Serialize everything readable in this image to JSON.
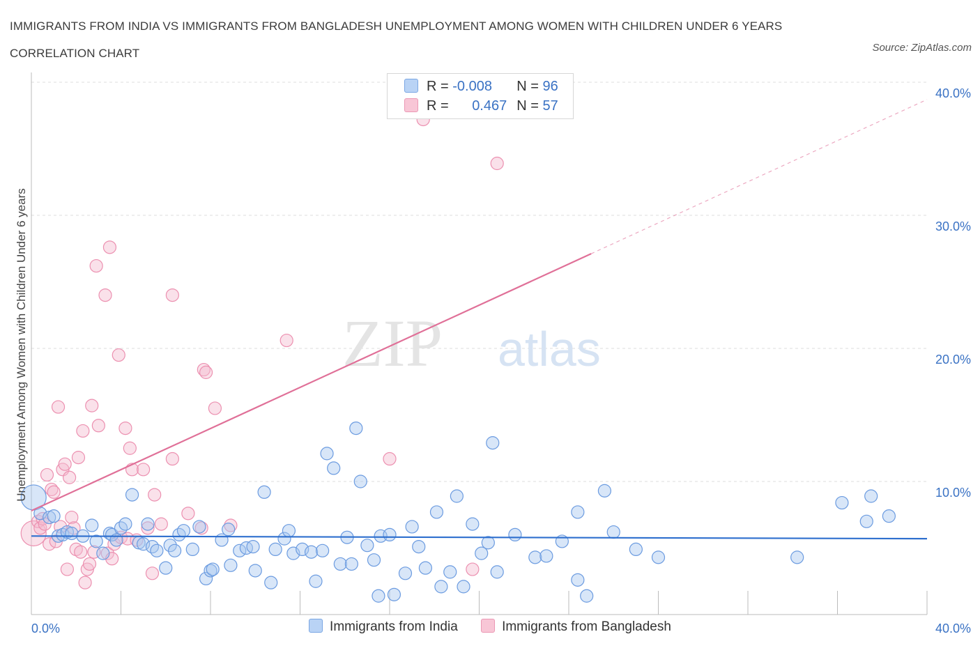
{
  "title": "IMMIGRANTS FROM INDIA VS IMMIGRANTS FROM BANGLADESH UNEMPLOYMENT AMONG WOMEN WITH CHILDREN UNDER 6 YEARS CORRELATION CHART",
  "source": "Source: ZipAtlas.com",
  "watermark": {
    "zip": "ZIP",
    "atlas": "atlas"
  },
  "legend": {
    "r_label": "R =",
    "n_label": "N =",
    "rows": [
      {
        "r": "-0.008",
        "n": "96"
      },
      {
        "r": "0.467",
        "n": "57"
      }
    ]
  },
  "chart_data": {
    "type": "scatter",
    "ylabel": "Unemployment Among Women with Children Under 6 years",
    "xlabel": "",
    "xlim": [
      0,
      40
    ],
    "ylim": [
      0,
      40
    ],
    "x_tick_labels": [
      "0.0%",
      "40.0%"
    ],
    "y_tick_labels": [
      "10.0%",
      "20.0%",
      "30.0%",
      "40.0%"
    ],
    "y_ticks": [
      10,
      20,
      30,
      40
    ],
    "grid": true,
    "colors": {
      "india": "#6b9be0",
      "bangladesh": "#ec90b0",
      "india_line": "#2e6fce",
      "bangladesh_line": "#e07098"
    },
    "series": [
      {
        "name": "Immigrants from India",
        "trend": {
          "x1": 0,
          "y1": 5.9,
          "x2": 40,
          "y2": 5.7,
          "dashed_from": null
        },
        "points": [
          [
            0.1,
            8.8
          ],
          [
            0.4,
            7.6
          ],
          [
            0.8,
            7.3
          ],
          [
            1.0,
            7.4
          ],
          [
            1.2,
            5.9
          ],
          [
            1.4,
            6.0
          ],
          [
            1.6,
            6.2
          ],
          [
            1.8,
            6.1
          ],
          [
            2.3,
            5.9
          ],
          [
            2.7,
            6.7
          ],
          [
            2.9,
            5.5
          ],
          [
            3.2,
            4.6
          ],
          [
            3.5,
            6.1
          ],
          [
            3.6,
            6.0
          ],
          [
            3.8,
            5.6
          ],
          [
            4.0,
            6.5
          ],
          [
            4.2,
            6.8
          ],
          [
            4.5,
            9.0
          ],
          [
            4.8,
            5.4
          ],
          [
            5.0,
            5.3
          ],
          [
            5.2,
            6.8
          ],
          [
            5.4,
            5.1
          ],
          [
            5.6,
            4.8
          ],
          [
            6.0,
            3.5
          ],
          [
            6.2,
            5.2
          ],
          [
            6.4,
            4.8
          ],
          [
            6.6,
            6.0
          ],
          [
            6.8,
            6.3
          ],
          [
            7.2,
            4.9
          ],
          [
            7.5,
            6.6
          ],
          [
            7.8,
            2.7
          ],
          [
            8.0,
            3.3
          ],
          [
            8.1,
            3.4
          ],
          [
            8.5,
            5.6
          ],
          [
            8.8,
            6.4
          ],
          [
            8.9,
            3.7
          ],
          [
            9.3,
            4.8
          ],
          [
            9.6,
            5.0
          ],
          [
            9.9,
            5.1
          ],
          [
            10.0,
            3.3
          ],
          [
            10.4,
            9.2
          ],
          [
            10.7,
            2.4
          ],
          [
            10.9,
            4.9
          ],
          [
            11.3,
            5.7
          ],
          [
            11.5,
            6.3
          ],
          [
            11.7,
            4.6
          ],
          [
            12.1,
            4.9
          ],
          [
            12.5,
            4.7
          ],
          [
            12.7,
            2.5
          ],
          [
            13.0,
            4.8
          ],
          [
            13.2,
            12.1
          ],
          [
            13.5,
            11.0
          ],
          [
            13.8,
            3.8
          ],
          [
            14.1,
            5.8
          ],
          [
            14.3,
            3.8
          ],
          [
            14.5,
            14.0
          ],
          [
            14.7,
            10.0
          ],
          [
            15.0,
            5.2
          ],
          [
            15.3,
            4.1
          ],
          [
            15.5,
            1.4
          ],
          [
            15.6,
            5.9
          ],
          [
            16.0,
            6.0
          ],
          [
            16.2,
            1.5
          ],
          [
            16.7,
            3.1
          ],
          [
            17.0,
            6.6
          ],
          [
            17.3,
            5.1
          ],
          [
            17.6,
            3.5
          ],
          [
            18.1,
            7.7
          ],
          [
            18.3,
            2.1
          ],
          [
            18.7,
            3.2
          ],
          [
            19.0,
            8.9
          ],
          [
            19.3,
            2.1
          ],
          [
            19.7,
            6.8
          ],
          [
            20.1,
            4.6
          ],
          [
            20.4,
            5.4
          ],
          [
            20.6,
            12.9
          ],
          [
            20.8,
            3.2
          ],
          [
            21.6,
            6.0
          ],
          [
            22.5,
            4.3
          ],
          [
            23.0,
            4.4
          ],
          [
            23.7,
            5.5
          ],
          [
            24.4,
            7.7
          ],
          [
            24.4,
            2.6
          ],
          [
            24.8,
            1.4
          ],
          [
            25.6,
            9.3
          ],
          [
            26.0,
            6.2
          ],
          [
            27.0,
            4.9
          ],
          [
            28.0,
            4.3
          ],
          [
            34.2,
            4.3
          ],
          [
            36.2,
            8.4
          ],
          [
            37.3,
            7.0
          ],
          [
            37.5,
            8.9
          ],
          [
            38.3,
            7.4
          ]
        ]
      },
      {
        "name": "Immigrants from Bangladesh",
        "trend": {
          "x1": 0,
          "y1": 7.8,
          "x2": 40,
          "y2": 38.7,
          "dashed_from": 25.0
        },
        "points": [
          [
            0.1,
            6.1
          ],
          [
            0.3,
            7.0
          ],
          [
            0.4,
            6.5
          ],
          [
            0.5,
            7.2
          ],
          [
            0.6,
            6.8
          ],
          [
            0.7,
            10.5
          ],
          [
            0.8,
            5.3
          ],
          [
            0.9,
            9.4
          ],
          [
            1.0,
            9.2
          ],
          [
            1.1,
            5.5
          ],
          [
            1.2,
            15.6
          ],
          [
            1.3,
            6.6
          ],
          [
            1.4,
            10.9
          ],
          [
            1.5,
            11.3
          ],
          [
            1.6,
            3.4
          ],
          [
            1.7,
            10.3
          ],
          [
            1.8,
            7.3
          ],
          [
            1.9,
            6.5
          ],
          [
            2.0,
            4.9
          ],
          [
            2.1,
            11.8
          ],
          [
            2.2,
            4.7
          ],
          [
            2.3,
            13.8
          ],
          [
            2.4,
            2.4
          ],
          [
            2.5,
            3.4
          ],
          [
            2.6,
            3.8
          ],
          [
            2.7,
            15.7
          ],
          [
            2.8,
            4.7
          ],
          [
            2.9,
            26.2
          ],
          [
            3.0,
            14.2
          ],
          [
            3.3,
            24.0
          ],
          [
            3.4,
            4.6
          ],
          [
            3.5,
            27.6
          ],
          [
            3.6,
            4.2
          ],
          [
            3.7,
            5.3
          ],
          [
            3.9,
            19.5
          ],
          [
            4.0,
            5.8
          ],
          [
            4.2,
            14.0
          ],
          [
            4.3,
            5.7
          ],
          [
            4.4,
            12.5
          ],
          [
            4.5,
            10.9
          ],
          [
            4.7,
            5.6
          ],
          [
            5.0,
            10.9
          ],
          [
            5.2,
            6.5
          ],
          [
            5.4,
            3.1
          ],
          [
            5.5,
            9.0
          ],
          [
            5.8,
            6.8
          ],
          [
            6.3,
            24.0
          ],
          [
            6.3,
            11.7
          ],
          [
            7.0,
            7.6
          ],
          [
            7.6,
            6.5
          ],
          [
            7.7,
            18.4
          ],
          [
            7.8,
            18.2
          ],
          [
            8.2,
            15.5
          ],
          [
            8.9,
            6.7
          ],
          [
            11.4,
            20.6
          ],
          [
            16.0,
            11.7
          ],
          [
            17.5,
            37.2
          ],
          [
            19.7,
            3.4
          ],
          [
            20.8,
            33.9
          ]
        ]
      }
    ]
  },
  "bottom_legend": [
    "Immigrants from India",
    "Immigrants from Bangladesh"
  ]
}
